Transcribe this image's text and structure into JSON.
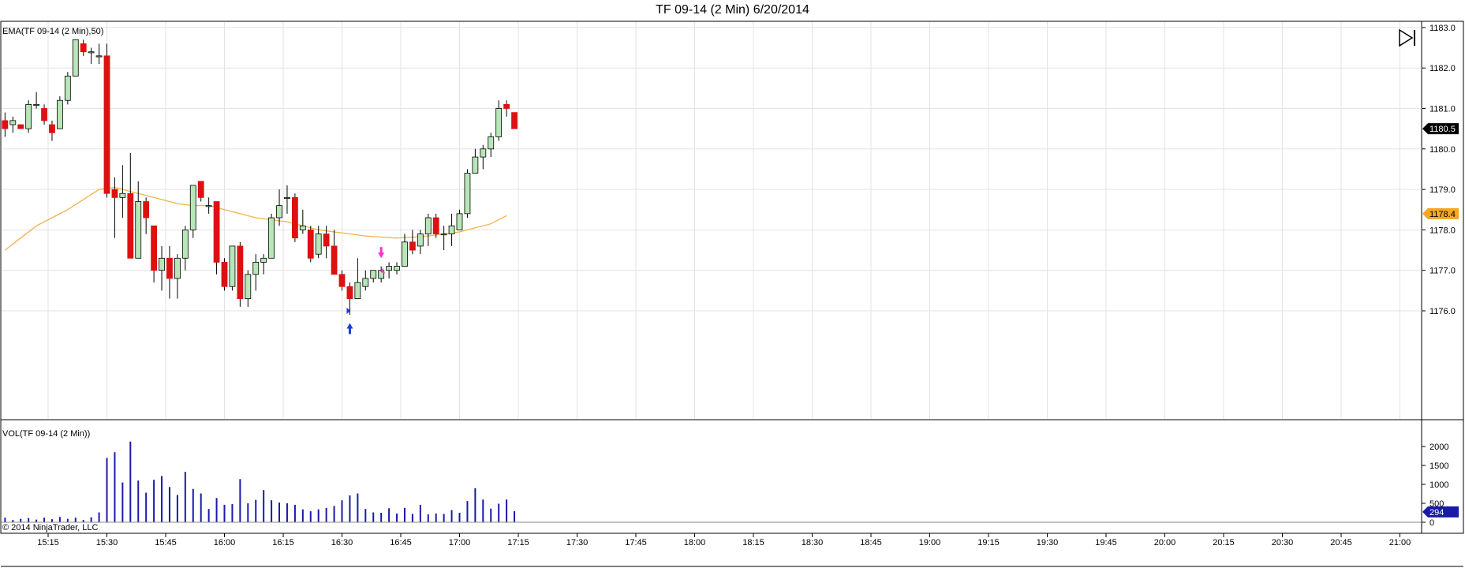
{
  "title": "TF 09-14 (2 Min)  6/20/2014",
  "price_pane": {
    "label": "EMA(TF 09-14 (2 Min),50)",
    "y_ticks": [
      "1176.0",
      "1177.0",
      "1178.0",
      "1179.0",
      "1180.0",
      "1181.0",
      "1182.0",
      "1183.0"
    ],
    "last_price_tag": "1180.5",
    "ema_tag": "1178.4"
  },
  "volume_pane": {
    "label": "VOL(TF 09-14 (2 Min))",
    "y_ticks": [
      "0",
      "500",
      "1000",
      "1500",
      "2000"
    ],
    "last_volume_tag": "294"
  },
  "x_ticks": [
    "15:15",
    "15:30",
    "15:45",
    "16:00",
    "16:15",
    "16:30",
    "16:45",
    "17:00",
    "17:15",
    "17:30",
    "17:45",
    "18:00",
    "18:15",
    "18:30",
    "18:45",
    "19:00",
    "19:15",
    "19:30",
    "19:45",
    "20:00",
    "20:15",
    "20:30",
    "20:45",
    "21:00"
  ],
  "copyright": "© 2014 NinjaTrader, LLC",
  "colors": {
    "up": "#b8e6b8",
    "down": "#dd1111",
    "wick": "#000000",
    "ema": "#f0b34a",
    "volume": "#1a1aa8",
    "grid": "#e3e3e3",
    "last_tag": "#000000",
    "ema_tag": "#f5a623",
    "vol_tag": "#1a1aa8",
    "buy_arrow": "#1a3ed8",
    "sell_arrow": "#ff33cc"
  },
  "chart_data": {
    "type": "candlestick",
    "interval": "2 Min",
    "x_range": [
      "15:04",
      "21:00"
    ],
    "y_range": [
      1175.0,
      1183.2
    ],
    "volume_range": [
      0,
      2200
    ],
    "bars": [
      {
        "t": "15:04",
        "o": 1180.7,
        "h": 1180.9,
        "l": 1180.3,
        "c": 1180.5,
        "v": 120
      },
      {
        "t": "15:06",
        "o": 1180.6,
        "h": 1180.8,
        "l": 1180.4,
        "c": 1180.7,
        "v": 60
      },
      {
        "t": "15:08",
        "o": 1180.6,
        "h": 1180.6,
        "l": 1180.5,
        "c": 1180.5,
        "v": 90
      },
      {
        "t": "15:10",
        "o": 1180.5,
        "h": 1181.2,
        "l": 1180.4,
        "c": 1181.1,
        "v": 110
      },
      {
        "t": "15:12",
        "o": 1181.1,
        "h": 1181.4,
        "l": 1181.0,
        "c": 1181.1,
        "v": 70
      },
      {
        "t": "15:14",
        "o": 1181.0,
        "h": 1181.1,
        "l": 1180.6,
        "c": 1180.7,
        "v": 120
      },
      {
        "t": "15:16",
        "o": 1180.6,
        "h": 1180.7,
        "l": 1180.2,
        "c": 1180.4,
        "v": 80
      },
      {
        "t": "15:18",
        "o": 1180.5,
        "h": 1181.3,
        "l": 1180.5,
        "c": 1181.2,
        "v": 140
      },
      {
        "t": "15:20",
        "o": 1181.2,
        "h": 1181.9,
        "l": 1181.1,
        "c": 1181.8,
        "v": 90
      },
      {
        "t": "15:22",
        "o": 1181.8,
        "h": 1182.7,
        "l": 1181.8,
        "c": 1182.7,
        "v": 120
      },
      {
        "t": "15:24",
        "o": 1182.6,
        "h": 1182.7,
        "l": 1182.3,
        "c": 1182.4,
        "v": 60
      },
      {
        "t": "15:26",
        "o": 1182.4,
        "h": 1182.5,
        "l": 1182.1,
        "c": 1182.4,
        "v": 130
      },
      {
        "t": "15:28",
        "o": 1182.3,
        "h": 1182.6,
        "l": 1182.1,
        "c": 1182.3,
        "v": 260
      },
      {
        "t": "15:30",
        "o": 1182.3,
        "h": 1182.6,
        "l": 1178.8,
        "c": 1178.9,
        "v": 1700
      },
      {
        "t": "15:32",
        "o": 1179.0,
        "h": 1179.3,
        "l": 1177.8,
        "c": 1178.8,
        "v": 1850
      },
      {
        "t": "15:34",
        "o": 1178.8,
        "h": 1179.6,
        "l": 1178.3,
        "c": 1178.9,
        "v": 1050
      },
      {
        "t": "15:36",
        "o": 1178.9,
        "h": 1179.9,
        "l": 1177.3,
        "c": 1177.3,
        "v": 2130
      },
      {
        "t": "15:38",
        "o": 1177.3,
        "h": 1179.2,
        "l": 1177.3,
        "c": 1178.7,
        "v": 1100
      },
      {
        "t": "15:40",
        "o": 1178.7,
        "h": 1178.8,
        "l": 1177.9,
        "c": 1178.3,
        "v": 780
      },
      {
        "t": "15:42",
        "o": 1178.1,
        "h": 1178.1,
        "l": 1176.7,
        "c": 1177.0,
        "v": 1120
      },
      {
        "t": "15:44",
        "o": 1177.0,
        "h": 1177.6,
        "l": 1176.5,
        "c": 1177.3,
        "v": 1220
      },
      {
        "t": "15:46",
        "o": 1177.3,
        "h": 1177.6,
        "l": 1176.3,
        "c": 1176.8,
        "v": 930
      },
      {
        "t": "15:48",
        "o": 1176.8,
        "h": 1177.4,
        "l": 1176.3,
        "c": 1177.3,
        "v": 720
      },
      {
        "t": "15:50",
        "o": 1177.3,
        "h": 1178.1,
        "l": 1177.0,
        "c": 1178.0,
        "v": 1330
      },
      {
        "t": "15:52",
        "o": 1178.0,
        "h": 1179.1,
        "l": 1177.8,
        "c": 1179.1,
        "v": 880
      },
      {
        "t": "15:54",
        "o": 1179.2,
        "h": 1179.2,
        "l": 1178.7,
        "c": 1178.8,
        "v": 760
      },
      {
        "t": "15:56",
        "o": 1178.6,
        "h": 1178.8,
        "l": 1178.4,
        "c": 1178.6,
        "v": 350
      },
      {
        "t": "15:58",
        "o": 1178.7,
        "h": 1178.7,
        "l": 1176.9,
        "c": 1177.2,
        "v": 640
      },
      {
        "t": "16:00",
        "o": 1177.2,
        "h": 1177.3,
        "l": 1176.5,
        "c": 1176.6,
        "v": 460
      },
      {
        "t": "16:02",
        "o": 1176.6,
        "h": 1177.6,
        "l": 1176.5,
        "c": 1177.6,
        "v": 480
      },
      {
        "t": "16:04",
        "o": 1177.6,
        "h": 1177.7,
        "l": 1176.1,
        "c": 1176.3,
        "v": 1140
      },
      {
        "t": "16:06",
        "o": 1176.3,
        "h": 1177.0,
        "l": 1176.1,
        "c": 1176.9,
        "v": 500
      },
      {
        "t": "16:08",
        "o": 1176.9,
        "h": 1177.4,
        "l": 1176.5,
        "c": 1177.2,
        "v": 590
      },
      {
        "t": "16:10",
        "o": 1177.2,
        "h": 1177.4,
        "l": 1176.9,
        "c": 1177.3,
        "v": 850
      },
      {
        "t": "16:12",
        "o": 1177.3,
        "h": 1178.4,
        "l": 1177.3,
        "c": 1178.3,
        "v": 580
      },
      {
        "t": "16:14",
        "o": 1178.3,
        "h": 1179.0,
        "l": 1178.1,
        "c": 1178.6,
        "v": 520
      },
      {
        "t": "16:16",
        "o": 1178.8,
        "h": 1179.1,
        "l": 1178.4,
        "c": 1178.8,
        "v": 500
      },
      {
        "t": "16:18",
        "o": 1178.8,
        "h": 1178.9,
        "l": 1177.7,
        "c": 1177.8,
        "v": 460
      },
      {
        "t": "16:20",
        "o": 1178.0,
        "h": 1178.5,
        "l": 1177.9,
        "c": 1178.1,
        "v": 340
      },
      {
        "t": "16:22",
        "o": 1178.0,
        "h": 1178.1,
        "l": 1177.2,
        "c": 1177.3,
        "v": 290
      },
      {
        "t": "16:24",
        "o": 1177.4,
        "h": 1178.1,
        "l": 1177.3,
        "c": 1177.9,
        "v": 340
      },
      {
        "t": "16:26",
        "o": 1177.9,
        "h": 1178.1,
        "l": 1177.3,
        "c": 1177.6,
        "v": 380
      },
      {
        "t": "16:28",
        "o": 1177.6,
        "h": 1178.0,
        "l": 1176.9,
        "c": 1176.9,
        "v": 430
      },
      {
        "t": "16:30",
        "o": 1176.9,
        "h": 1177.0,
        "l": 1176.5,
        "c": 1176.6,
        "v": 580
      },
      {
        "t": "16:32",
        "o": 1176.6,
        "h": 1176.7,
        "l": 1175.9,
        "c": 1176.3,
        "v": 710
      },
      {
        "t": "16:34",
        "o": 1176.3,
        "h": 1177.3,
        "l": 1176.3,
        "c": 1176.7,
        "v": 760
      },
      {
        "t": "16:36",
        "o": 1176.6,
        "h": 1177.0,
        "l": 1176.5,
        "c": 1176.8,
        "v": 350
      },
      {
        "t": "16:38",
        "o": 1176.8,
        "h": 1177.0,
        "l": 1176.7,
        "c": 1177.0,
        "v": 260
      },
      {
        "t": "16:40",
        "o": 1176.8,
        "h": 1177.1,
        "l": 1176.7,
        "c": 1177.0,
        "v": 250
      },
      {
        "t": "16:42",
        "o": 1177.0,
        "h": 1177.2,
        "l": 1176.8,
        "c": 1177.1,
        "v": 370
      },
      {
        "t": "16:44",
        "o": 1177.0,
        "h": 1177.2,
        "l": 1176.9,
        "c": 1177.1,
        "v": 230
      },
      {
        "t": "16:46",
        "o": 1177.1,
        "h": 1177.9,
        "l": 1177.1,
        "c": 1177.7,
        "v": 380
      },
      {
        "t": "16:48",
        "o": 1177.7,
        "h": 1178.0,
        "l": 1177.4,
        "c": 1177.5,
        "v": 220
      },
      {
        "t": "16:50",
        "o": 1177.6,
        "h": 1178.0,
        "l": 1177.4,
        "c": 1177.9,
        "v": 460
      },
      {
        "t": "16:52",
        "o": 1177.9,
        "h": 1178.4,
        "l": 1177.6,
        "c": 1178.3,
        "v": 210
      },
      {
        "t": "16:54",
        "o": 1178.3,
        "h": 1178.4,
        "l": 1177.8,
        "c": 1177.9,
        "v": 230
      },
      {
        "t": "16:56",
        "o": 1177.9,
        "h": 1178.1,
        "l": 1177.5,
        "c": 1177.9,
        "v": 220
      },
      {
        "t": "16:58",
        "o": 1177.9,
        "h": 1178.4,
        "l": 1177.6,
        "c": 1178.1,
        "v": 320
      },
      {
        "t": "17:00",
        "o": 1178.0,
        "h": 1178.5,
        "l": 1178.0,
        "c": 1178.4,
        "v": 250
      },
      {
        "t": "17:02",
        "o": 1178.4,
        "h": 1179.5,
        "l": 1178.3,
        "c": 1179.4,
        "v": 560
      },
      {
        "t": "17:04",
        "o": 1179.4,
        "h": 1180.0,
        "l": 1179.4,
        "c": 1179.8,
        "v": 900
      },
      {
        "t": "17:06",
        "o": 1179.8,
        "h": 1180.1,
        "l": 1179.5,
        "c": 1180.0,
        "v": 600
      },
      {
        "t": "17:08",
        "o": 1180.0,
        "h": 1180.4,
        "l": 1179.8,
        "c": 1180.3,
        "v": 360
      },
      {
        "t": "17:10",
        "o": 1180.3,
        "h": 1181.2,
        "l": 1180.2,
        "c": 1181.0,
        "v": 490
      },
      {
        "t": "17:12",
        "o": 1181.1,
        "h": 1181.2,
        "l": 1180.8,
        "c": 1181.0,
        "v": 600
      },
      {
        "t": "17:14",
        "o": 1180.9,
        "h": 1180.9,
        "l": 1180.5,
        "c": 1180.5,
        "v": 294
      }
    ],
    "ema": [
      {
        "t": "15:04",
        "v": 1177.5
      },
      {
        "t": "15:08",
        "v": 1177.8
      },
      {
        "t": "15:12",
        "v": 1178.1
      },
      {
        "t": "15:16",
        "v": 1178.3
      },
      {
        "t": "15:20",
        "v": 1178.5
      },
      {
        "t": "15:24",
        "v": 1178.75
      },
      {
        "t": "15:28",
        "v": 1179.0
      },
      {
        "t": "15:32",
        "v": 1179.05
      },
      {
        "t": "15:36",
        "v": 1178.95
      },
      {
        "t": "15:40",
        "v": 1178.85
      },
      {
        "t": "15:44",
        "v": 1178.75
      },
      {
        "t": "15:48",
        "v": 1178.65
      },
      {
        "t": "15:52",
        "v": 1178.6
      },
      {
        "t": "15:56",
        "v": 1178.6
      },
      {
        "t": "16:00",
        "v": 1178.5
      },
      {
        "t": "16:04",
        "v": 1178.4
      },
      {
        "t": "16:08",
        "v": 1178.3
      },
      {
        "t": "16:12",
        "v": 1178.25
      },
      {
        "t": "16:16",
        "v": 1178.2
      },
      {
        "t": "16:20",
        "v": 1178.1
      },
      {
        "t": "16:24",
        "v": 1178.0
      },
      {
        "t": "16:28",
        "v": 1177.95
      },
      {
        "t": "16:32",
        "v": 1177.9
      },
      {
        "t": "16:36",
        "v": 1177.85
      },
      {
        "t": "16:40",
        "v": 1177.82
      },
      {
        "t": "16:44",
        "v": 1177.8
      },
      {
        "t": "16:48",
        "v": 1177.82
      },
      {
        "t": "16:52",
        "v": 1177.85
      },
      {
        "t": "16:56",
        "v": 1177.9
      },
      {
        "t": "17:00",
        "v": 1177.95
      },
      {
        "t": "17:04",
        "v": 1178.05
      },
      {
        "t": "17:08",
        "v": 1178.15
      },
      {
        "t": "17:12",
        "v": 1178.35
      }
    ],
    "markers": [
      {
        "type": "buy-entry",
        "t": "16:32",
        "price": 1175.6
      },
      {
        "type": "buy-fill",
        "t": "16:32",
        "price": 1176.0
      },
      {
        "type": "sell-exit",
        "t": "16:40",
        "price": 1177.4
      },
      {
        "type": "sell-fill",
        "t": "16:40",
        "price": 1177.0
      }
    ]
  }
}
